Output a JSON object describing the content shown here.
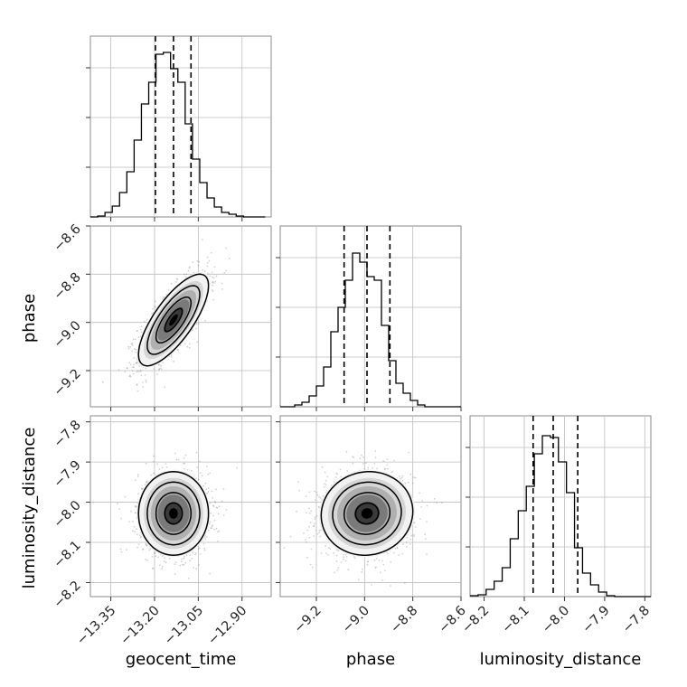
{
  "chart_data": {
    "type": "corner",
    "parameters": [
      "geocent_time",
      "phase",
      "luminosity_distance"
    ],
    "axis_labels": {
      "geocent_time": "geocent_time",
      "phase": "phase",
      "luminosity_distance": "luminosity_distance"
    },
    "ranges": {
      "geocent_time": [
        -13.42,
        -12.8
      ],
      "phase": [
        -9.35,
        -8.6
      ],
      "luminosity_distance": [
        -8.235,
        -7.785
      ]
    },
    "ticks": {
      "geocent_time": {
        "values": [
          -13.35,
          -13.2,
          -13.05,
          -12.9
        ],
        "labels": [
          "−13.35",
          "−13.20",
          "−13.05",
          "−12.90"
        ]
      },
      "phase_y": {
        "values": [
          -9.2,
          -9.0,
          -8.8,
          -8.6
        ],
        "labels": [
          "−9.2",
          "−9.0",
          "−8.8",
          "−8.6"
        ]
      },
      "phase_x": {
        "values": [
          -9.2,
          -9.0,
          -8.8,
          -8.6
        ],
        "labels": [
          "−9.2",
          "−9.0",
          "−8.8",
          "−8.6"
        ]
      },
      "luminosity_distance_y": {
        "values": [
          -8.2,
          -8.1,
          -8.0,
          -7.9,
          -7.8
        ],
        "labels": [
          "−8.2",
          "−8.1",
          "−8.0",
          "−7.9",
          "−7.8"
        ]
      },
      "luminosity_distance_x": {
        "values": [
          -8.2,
          -8.1,
          -8.0,
          -7.9,
          -7.8
        ],
        "labels": [
          "−8.2",
          "−8.1",
          "−8.0",
          "−7.9",
          "−7.8"
        ]
      }
    },
    "histograms": [
      {
        "parameter": "geocent_time",
        "edges": [
          -13.42,
          -13.395,
          -13.37,
          -13.345,
          -13.32,
          -13.295,
          -13.27,
          -13.245,
          -13.22,
          -13.195,
          -13.17,
          -13.145,
          -13.12,
          -13.095,
          -13.07,
          -13.045,
          -13.02,
          -12.995,
          -12.97,
          -12.945,
          -12.92,
          -12.895,
          -12.87,
          -12.845,
          -12.82
        ],
        "counts": [
          0,
          1,
          5,
          12,
          27,
          50,
          85,
          125,
          149,
          180,
          182,
          164,
          149,
          103,
          64,
          38,
          21,
          11,
          5,
          3,
          1,
          0,
          0,
          0
        ],
        "ymax": 200,
        "ygrid": [
          55,
          110,
          165
        ],
        "quantiles": [
          -13.197,
          -13.135,
          -13.075
        ]
      },
      {
        "parameter": "phase",
        "edges": [
          -9.35,
          -9.32,
          -9.29,
          -9.26,
          -9.23,
          -9.2,
          -9.17,
          -9.14,
          -9.11,
          -9.08,
          -9.05,
          -9.02,
          -8.99,
          -8.96,
          -8.93,
          -8.9,
          -8.87,
          -8.84,
          -8.81,
          -8.78,
          -8.75,
          -8.72,
          -8.69,
          -8.66,
          -8.63,
          -8.6
        ],
        "counts": [
          0,
          0,
          2,
          5,
          12,
          23,
          44,
          83,
          110,
          140,
          170,
          160,
          144,
          140,
          90,
          51,
          26,
          15,
          7,
          2,
          0,
          0,
          0,
          0,
          0
        ],
        "ymax": 200,
        "ygrid": [
          55,
          110,
          165
        ],
        "quantiles": [
          -9.085,
          -8.99,
          -8.895
        ]
      },
      {
        "parameter": "luminosity_distance",
        "edges": [
          -8.235,
          -8.215,
          -8.195,
          -8.175,
          -8.155,
          -8.135,
          -8.115,
          -8.095,
          -8.075,
          -8.055,
          -8.035,
          -8.015,
          -7.995,
          -7.975,
          -7.955,
          -7.935,
          -7.915,
          -7.895,
          -7.875,
          -7.855,
          -7.835,
          -7.815,
          -7.795,
          -7.785
        ],
        "counts": [
          1,
          2,
          8,
          17,
          32,
          64,
          95,
          122,
          158,
          178,
          176,
          149,
          115,
          54,
          26,
          13,
          5,
          1,
          0,
          0,
          0,
          0,
          0
        ],
        "ymax": 200,
        "ygrid": [
          55,
          110,
          165
        ],
        "quantiles": [
          -8.078,
          -8.028,
          -7.967
        ]
      }
    ],
    "joint": [
      {
        "x": "geocent_time",
        "y": "phase",
        "mean": [
          -13.135,
          -8.99
        ],
        "std": [
          0.06,
          0.095
        ],
        "rho": 0.75,
        "levels": [
          0.5,
          1.0,
          1.5,
          2.0
        ]
      },
      {
        "x": "geocent_time",
        "y": "luminosity_distance",
        "mean": [
          -13.135,
          -8.028
        ],
        "std": [
          0.06,
          0.052
        ],
        "rho": 0.0,
        "levels": [
          0.5,
          1.0,
          1.5,
          2.0
        ]
      },
      {
        "x": "phase",
        "y": "luminosity_distance",
        "mean": [
          -8.99,
          -8.028
        ],
        "std": [
          0.095,
          0.052
        ],
        "rho": 0.05,
        "levels": [
          0.5,
          1.0,
          1.5,
          2.0
        ]
      }
    ],
    "grid": true
  }
}
